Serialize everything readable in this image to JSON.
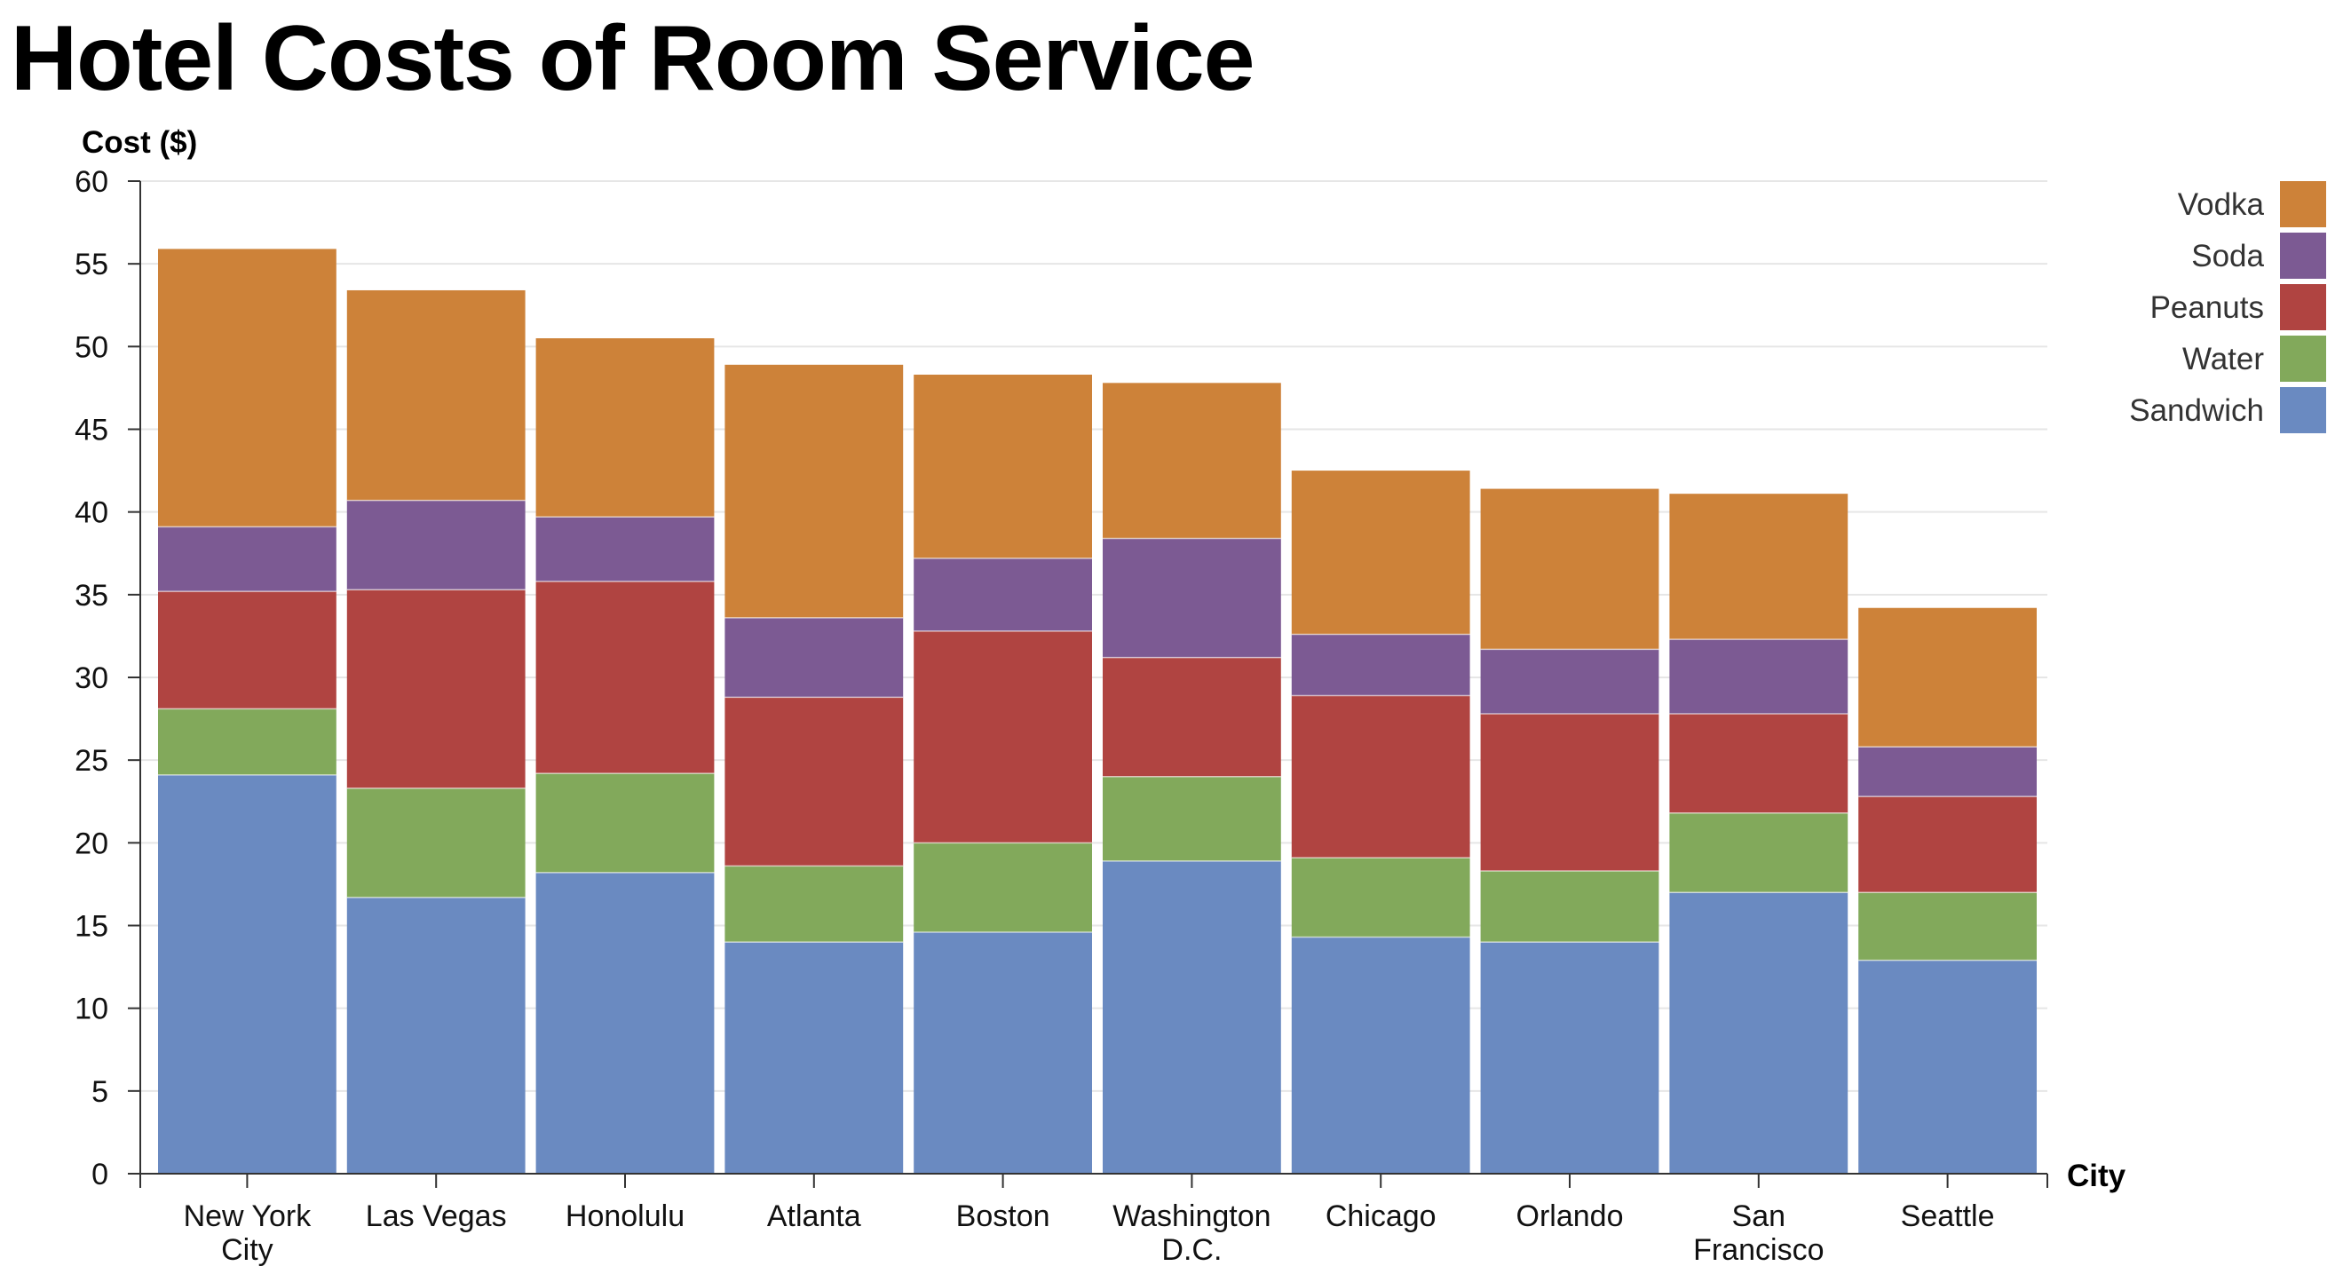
{
  "chart_data": {
    "type": "bar",
    "stacked": true,
    "title": "Hotel Costs of Room Service",
    "xlabel": "City",
    "ylabel": "Cost ($)",
    "ylim": [
      0,
      60
    ],
    "yticks": [
      0,
      5,
      10,
      15,
      20,
      25,
      30,
      35,
      40,
      45,
      50,
      55,
      60
    ],
    "grid": true,
    "legend_position": "top-right",
    "categories": [
      [
        "New York",
        "City"
      ],
      [
        "Las Vegas"
      ],
      [
        "Honolulu"
      ],
      [
        "Atlanta"
      ],
      [
        "Boston"
      ],
      [
        "Washington",
        "D.C."
      ],
      [
        "Chicago"
      ],
      [
        "Orlando"
      ],
      [
        "San",
        "Francisco"
      ],
      [
        "Seattle"
      ]
    ],
    "series": [
      {
        "name": "Sandwich",
        "color": "#6a8ac1",
        "values": [
          24.1,
          16.7,
          18.2,
          14.0,
          14.6,
          18.9,
          14.3,
          14.0,
          17.0,
          12.9
        ]
      },
      {
        "name": "Water",
        "color": "#82a95b",
        "values": [
          4.0,
          6.6,
          6.0,
          4.6,
          5.4,
          5.1,
          4.8,
          4.3,
          4.8,
          4.1
        ]
      },
      {
        "name": "Peanuts",
        "color": "#b04441",
        "values": [
          7.1,
          12.0,
          11.6,
          10.2,
          12.8,
          7.2,
          9.8,
          9.5,
          6.0,
          5.8
        ]
      },
      {
        "name": "Soda",
        "color": "#7c5a93",
        "values": [
          3.9,
          5.4,
          3.9,
          4.8,
          4.4,
          7.2,
          3.7,
          3.9,
          4.5,
          3.0
        ]
      },
      {
        "name": "Vodka",
        "color": "#cd8239",
        "values": [
          16.8,
          12.7,
          10.8,
          15.3,
          11.1,
          9.4,
          9.9,
          9.7,
          8.8,
          8.4
        ]
      }
    ]
  }
}
